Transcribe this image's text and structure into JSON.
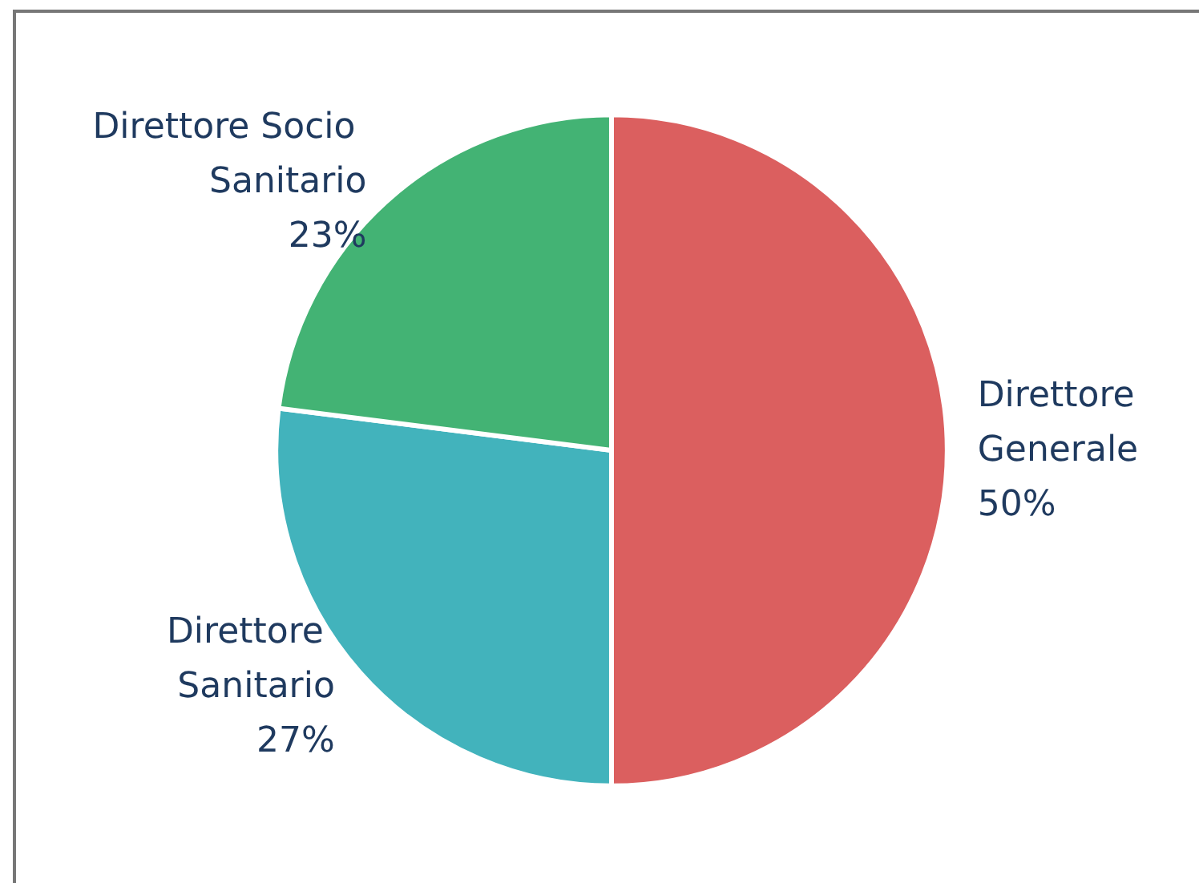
{
  "chart_data": {
    "type": "pie",
    "categories": [
      "Direttore Generale",
      "Direttore Sanitario",
      "Direttore Socio Sanitario"
    ],
    "values": [
      50,
      27,
      23
    ],
    "value_labels": [
      "50%",
      "27%",
      "23%"
    ],
    "colors": [
      "#db5f5f",
      "#42b3bc",
      "#43b374"
    ],
    "legend": false
  }
}
